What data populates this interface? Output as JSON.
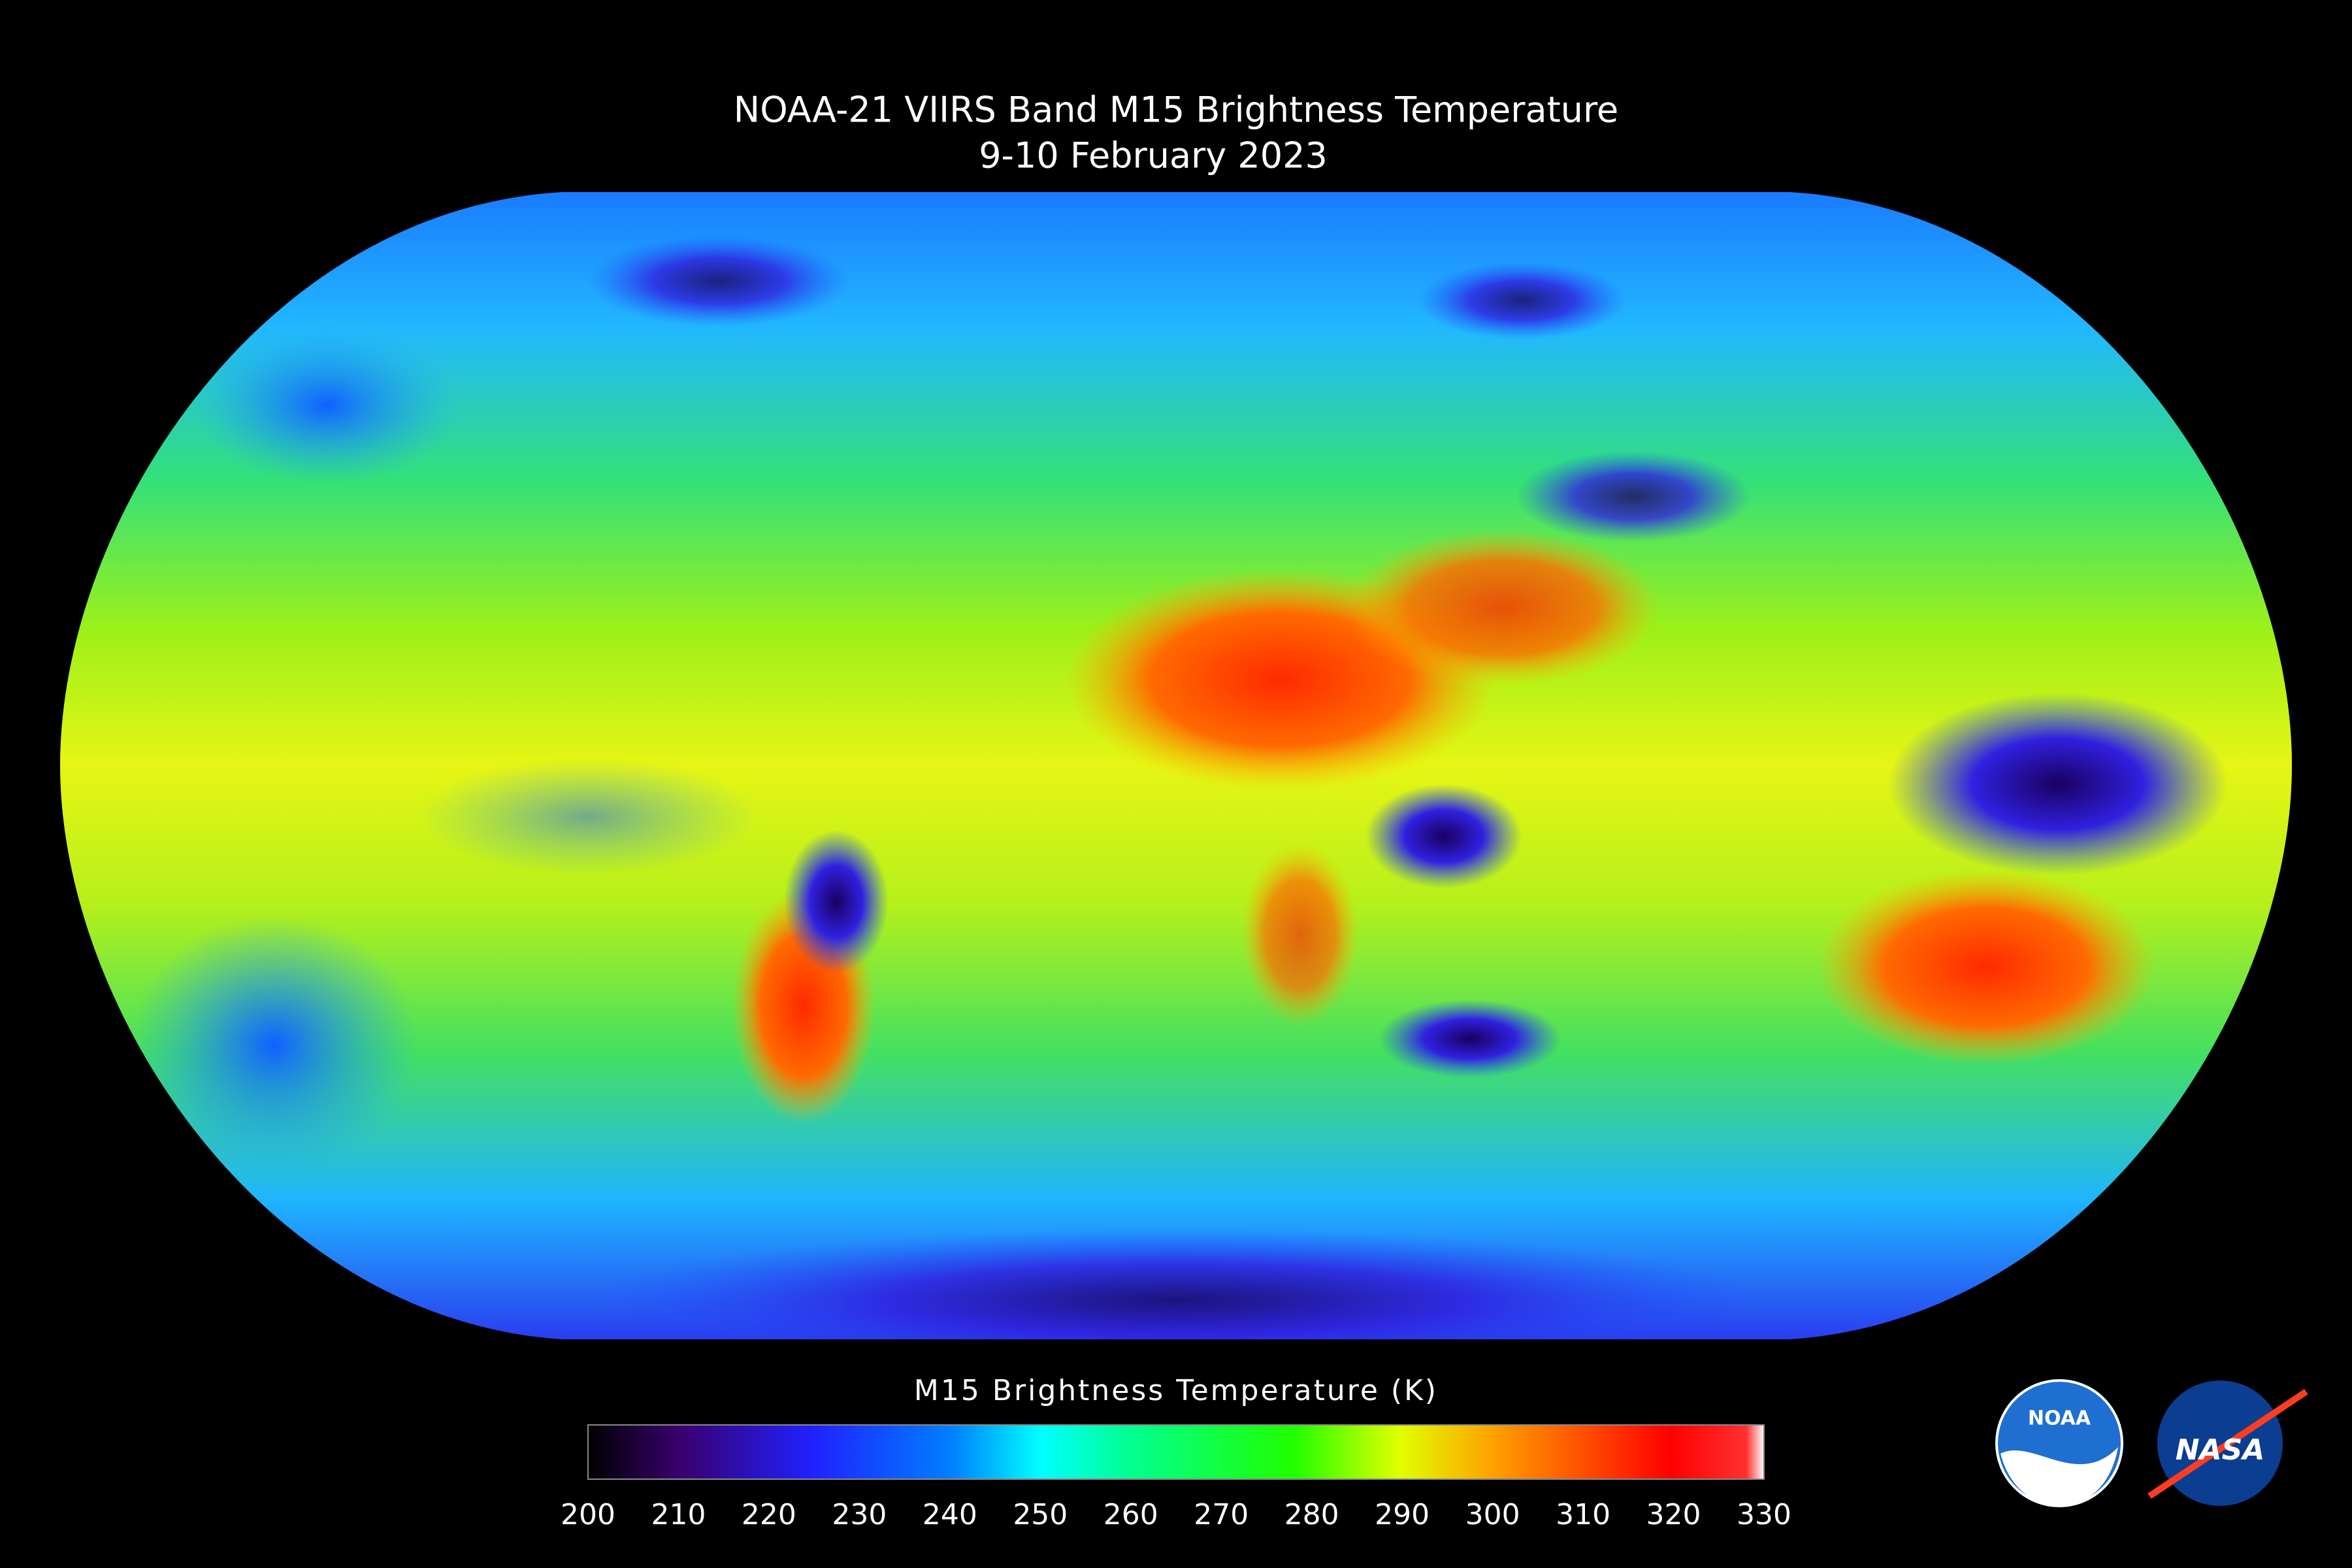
{
  "header": {
    "title": "NOAA-21 VIIRS  Band M15 Brightness Temperature",
    "subtitle": "9-10 February 2023"
  },
  "colorbar": {
    "label": "M15 Brightness Temperature (K)",
    "ticks": [
      200,
      210,
      220,
      230,
      240,
      250,
      260,
      270,
      280,
      290,
      300,
      310,
      320,
      330
    ]
  },
  "logos": [
    "NOAA",
    "NASA"
  ]
}
